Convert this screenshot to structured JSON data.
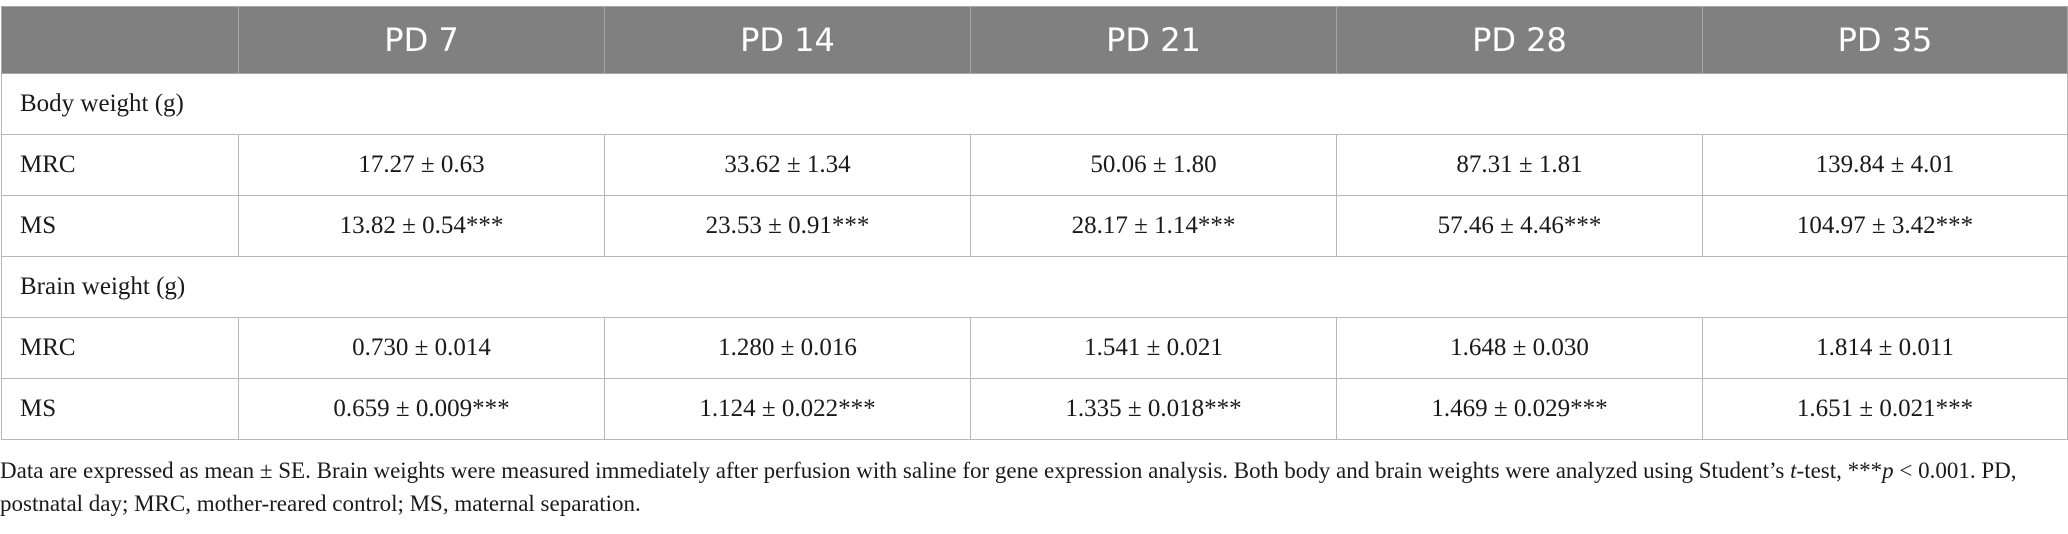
{
  "table": {
    "header": [
      "",
      "PD 7",
      "PD 14",
      "PD 21",
      "PD 28",
      "PD 35"
    ],
    "sections": [
      {
        "title": "Body weight (g)",
        "rows": [
          {
            "label": "MRC",
            "values": [
              "17.27 ± 0.63",
              "33.62 ± 1.34",
              "50.06 ± 1.80",
              "87.31 ± 1.81",
              "139.84 ± 4.01"
            ]
          },
          {
            "label": "MS",
            "values": [
              "13.82 ± 0.54***",
              "23.53 ± 0.91***",
              "28.17 ± 1.14***",
              "57.46 ± 4.46***",
              "104.97 ± 3.42***"
            ]
          }
        ]
      },
      {
        "title": "Brain weight (g)",
        "rows": [
          {
            "label": "MRC",
            "values": [
              "0.730 ± 0.014",
              "1.280 ± 0.016",
              "1.541 ± 0.021",
              "1.648 ± 0.030",
              "1.814 ± 0.011"
            ]
          },
          {
            "label": "MS",
            "values": [
              "0.659 ± 0.009***",
              "1.124 ± 0.022***",
              "1.335 ± 0.018***",
              "1.469 ± 0.029***",
              "1.651 ± 0.021***"
            ]
          }
        ]
      }
    ]
  },
  "footnote": {
    "part1": "Data are expressed as mean ± SE. Brain weights were measured immediately after perfusion with saline for gene expression analysis. Both body and brain weights were analyzed using Student’s ",
    "t": "t",
    "part2": "-test, ***",
    "p": "p",
    "part3": " < 0.001. PD, postnatal day; MRC, mother-reared control; MS, maternal separation."
  }
}
